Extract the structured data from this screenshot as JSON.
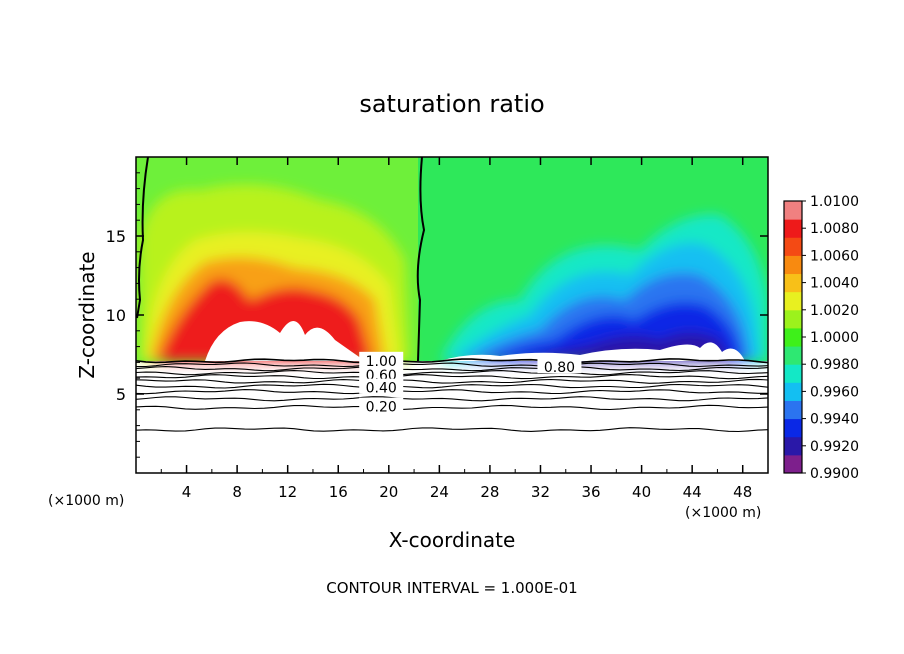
{
  "chart_data": {
    "type": "heatmap",
    "title": "saturation ratio",
    "xlabel": "X-coordinate",
    "ylabel": "Z-coordinate",
    "x_unit": "(×1000 m)",
    "footer": "CONTOUR INTERVAL = 1.000E-01",
    "xlim": [
      0,
      50
    ],
    "ylim": [
      0,
      20
    ],
    "x_ticks": [
      4,
      8,
      12,
      16,
      20,
      24,
      28,
      32,
      36,
      40,
      44,
      48
    ],
    "y_ticks": [
      5,
      10,
      15
    ],
    "colorbar": {
      "min": 0.99,
      "max": 1.01,
      "labels": [
        "1.0100",
        "1.0080",
        "1.0060",
        "1.0040",
        "1.0020",
        "1.0000",
        "0.9980",
        "0.9960",
        "0.9940",
        "0.9920",
        "0.9900"
      ],
      "colors": [
        "#7d1f8c",
        "#2a18a8",
        "#0a28e6",
        "#2b74f0",
        "#13bff2",
        "#13e8c6",
        "#2ee872",
        "#3ef01a",
        "#9cf21c",
        "#e8f020",
        "#f8c018",
        "#f88a10",
        "#f44a14",
        "#ee1a1a",
        "#f08080"
      ]
    },
    "contour_labels": [
      {
        "text": "1.00",
        "x": 19.4,
        "z": 7.1
      },
      {
        "text": "0.80",
        "x": 33.5,
        "z": 6.7
      },
      {
        "text": "0.60",
        "x": 19.4,
        "z": 6.2
      },
      {
        "text": "0.40",
        "x": 19.4,
        "z": 5.4
      },
      {
        "text": "0.20",
        "x": 19.4,
        "z": 4.2
      }
    ],
    "contour_levels_below": [
      7.1,
      6.85,
      6.6,
      6.35,
      6.1,
      5.8,
      5.5,
      5.15,
      4.7,
      4.15,
      2.75
    ]
  }
}
